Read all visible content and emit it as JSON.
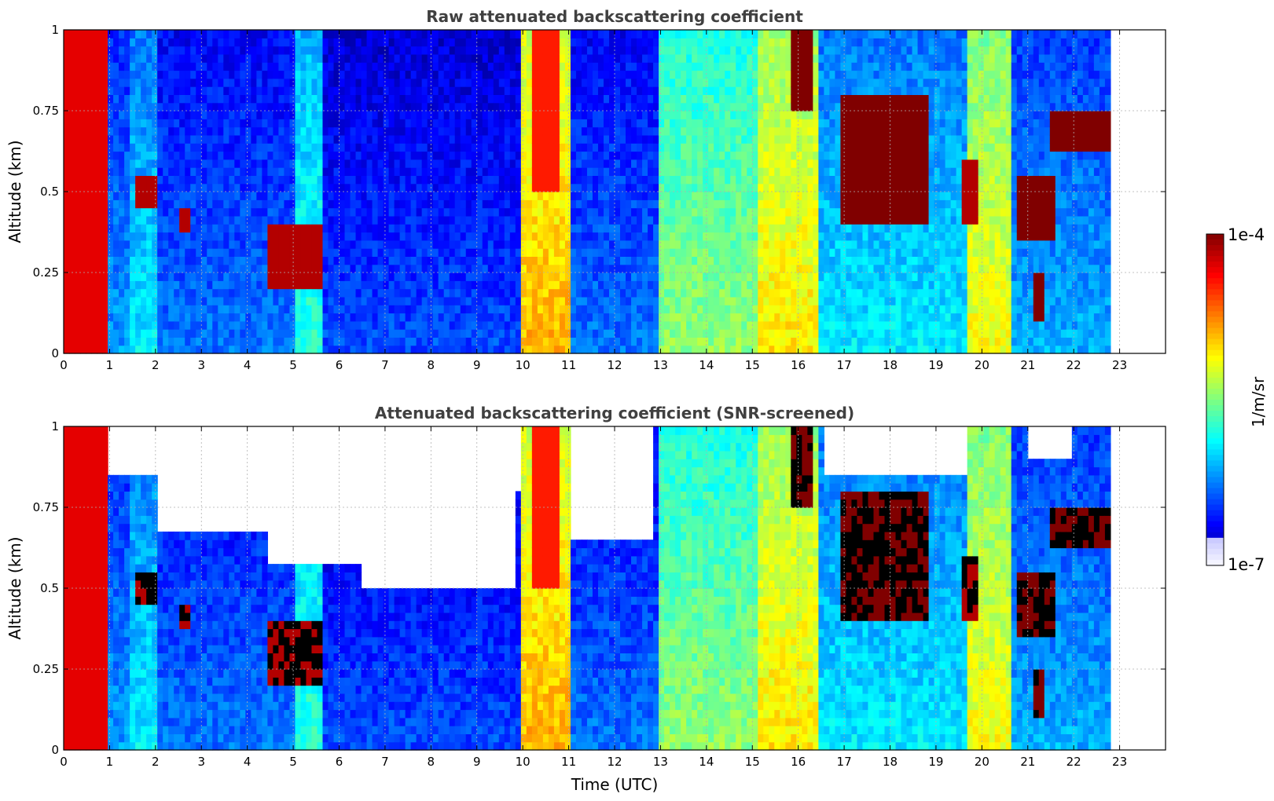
{
  "chart_data": [
    {
      "type": "heatmap",
      "title": "Raw attenuated backscattering coefficient",
      "xlabel": "",
      "ylabel": "Altitude (km)",
      "xlim": [
        0,
        24
      ],
      "ylim": [
        0,
        1
      ],
      "x_ticks": [
        "0",
        "1",
        "2",
        "3",
        "4",
        "5",
        "6",
        "7",
        "8",
        "9",
        "10",
        "11",
        "12",
        "13",
        "14",
        "15",
        "16",
        "17",
        "18",
        "19",
        "20",
        "21",
        "22",
        "23"
      ],
      "y_ticks": [
        "0",
        "0.25",
        "0.5",
        "0.75",
        "1"
      ],
      "grid": true,
      "data_end_time_utc": 22.8,
      "colormap": "jet",
      "color_scale": "log",
      "background_profile": [
        {
          "t": [
            0,
            1.0
          ],
          "level": 0.88
        },
        {
          "t": [
            1.0,
            1.5
          ],
          "level": 0.28
        },
        {
          "t": [
            1.5,
            2.0
          ],
          "level": 0.36
        },
        {
          "t": [
            2.0,
            5.0
          ],
          "level": 0.24
        },
        {
          "t": [
            5.0,
            5.7
          ],
          "level": 0.42
        },
        {
          "t": [
            5.7,
            10.0
          ],
          "level": 0.2
        },
        {
          "t": [
            10.0,
            11.1
          ],
          "level": 0.7
        },
        {
          "t": [
            11.1,
            13.0
          ],
          "level": 0.24
        },
        {
          "t": [
            13.0,
            15.1
          ],
          "level": 0.52
        },
        {
          "t": [
            15.1,
            16.4
          ],
          "level": 0.65
        },
        {
          "t": [
            16.4,
            19.7
          ],
          "level": 0.36
        },
        {
          "t": [
            19.7,
            20.7
          ],
          "level": 0.62
        },
        {
          "t": [
            20.7,
            22.8
          ],
          "level": 0.3
        }
      ],
      "aerosol_layers": [
        {
          "t": [
            0,
            1.0
          ],
          "alt": [
            0,
            1.0
          ],
          "level": 0.9
        },
        {
          "t": [
            1.55,
            2.0
          ],
          "alt": [
            0.45,
            0.55
          ],
          "level": 0.95
        },
        {
          "t": [
            2.55,
            2.8
          ],
          "alt": [
            0.38,
            0.46
          ],
          "level": 0.95
        },
        {
          "t": [
            4.5,
            5.6
          ],
          "alt": [
            0.2,
            0.4
          ],
          "level": 0.95
        },
        {
          "t": [
            10.2,
            10.8
          ],
          "alt": [
            0.5,
            1.0
          ],
          "level": 0.85
        },
        {
          "t": [
            15.9,
            16.3
          ],
          "alt": [
            0.75,
            1.0
          ],
          "level": 1.0
        },
        {
          "t": [
            16.9,
            18.9
          ],
          "alt": [
            0.4,
            0.8
          ],
          "level": 1.0
        },
        {
          "t": [
            19.6,
            19.9
          ],
          "alt": [
            0.4,
            0.6
          ],
          "level": 0.95
        },
        {
          "t": [
            20.8,
            21.6
          ],
          "alt": [
            0.35,
            0.55
          ],
          "level": 1.0
        },
        {
          "t": [
            21.1,
            21.4
          ],
          "alt": [
            0.1,
            0.25
          ],
          "level": 1.0
        },
        {
          "t": [
            21.5,
            22.8
          ],
          "alt": [
            0.62,
            0.75
          ],
          "level": 1.0
        }
      ]
    },
    {
      "type": "heatmap",
      "title": "Attenuated backscattering coefficient (SNR-screened)",
      "xlabel": "Time (UTC)",
      "ylabel": "Altitude (km)",
      "xlim": [
        0,
        24
      ],
      "ylim": [
        0,
        1
      ],
      "x_ticks": [
        "0",
        "1",
        "2",
        "3",
        "4",
        "5",
        "6",
        "7",
        "8",
        "9",
        "10",
        "11",
        "12",
        "13",
        "14",
        "15",
        "16",
        "17",
        "18",
        "19",
        "20",
        "21",
        "22",
        "23"
      ],
      "y_ticks": [
        "0",
        "0.25",
        "0.5",
        "0.75",
        "1"
      ],
      "grid": true,
      "data_end_time_utc": 22.8,
      "colormap": "jet",
      "color_scale": "log",
      "screened_above_km": [
        {
          "t": [
            1.0,
            2.0
          ],
          "alt": 0.85
        },
        {
          "t": [
            2.0,
            4.5
          ],
          "alt": 0.68
        },
        {
          "t": [
            4.5,
            6.5
          ],
          "alt": 0.58
        },
        {
          "t": [
            6.5,
            9.8
          ],
          "alt": 0.5
        },
        {
          "t": [
            9.8,
            10.0
          ],
          "alt": 0.8
        },
        {
          "t": [
            11.1,
            12.9
          ],
          "alt": 0.65
        },
        {
          "t": [
            16.6,
            19.7
          ],
          "alt": 0.85
        },
        {
          "t": [
            21.0,
            22.0
          ],
          "alt": 0.9
        }
      ]
    }
  ],
  "colorbar": {
    "label": "1/m/sr",
    "max_label": "1e-4",
    "min_label": "1e-7",
    "scale": "log",
    "colormap": "jet"
  }
}
